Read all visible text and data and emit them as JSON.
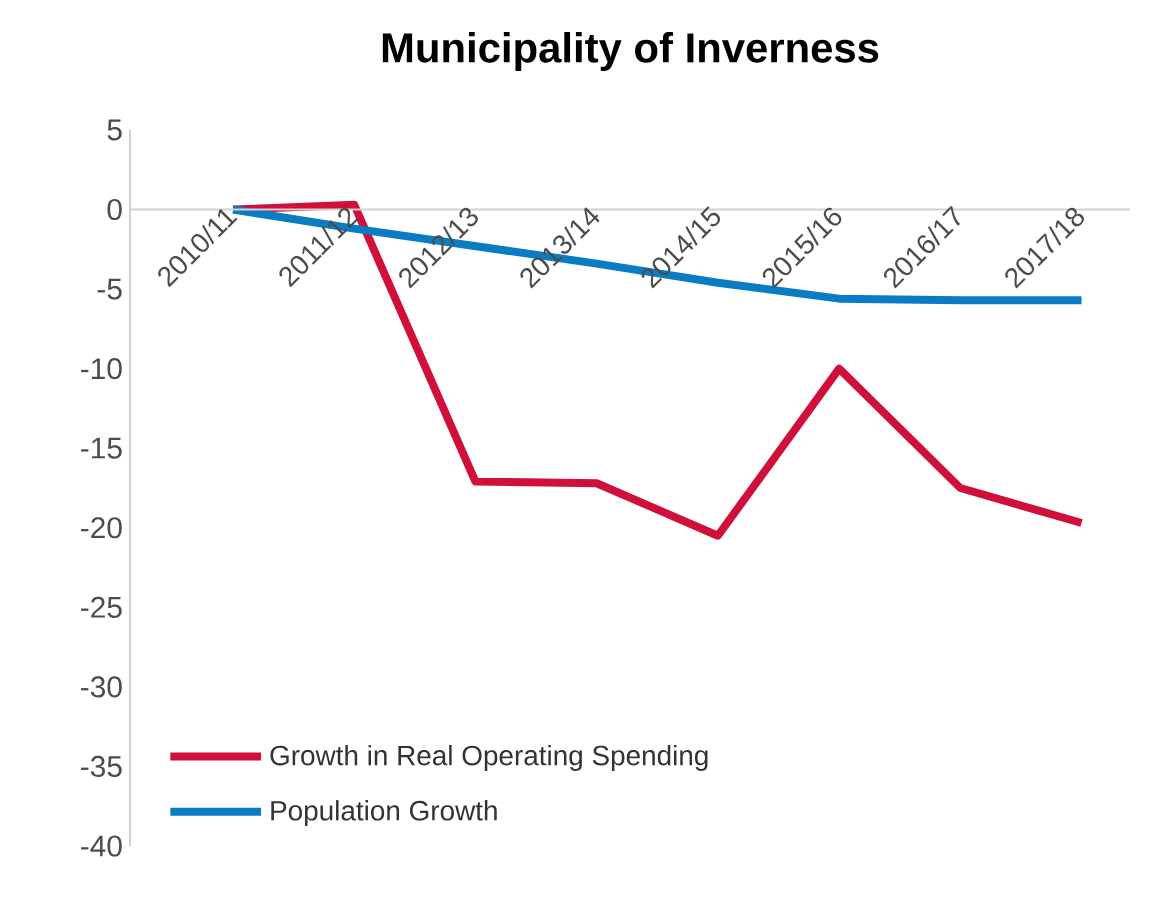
{
  "chart_data": {
    "type": "line",
    "title": "Municipality of Inverness",
    "categories": [
      "2010/11",
      "2011/12",
      "2012/13",
      "2013/14",
      "2014/15",
      "2015/16",
      "2016/17",
      "2017/18"
    ],
    "series": [
      {
        "name": "Growth in Real Operating Spending",
        "color": "#d0103a",
        "values": [
          0,
          0.3,
          -17.1,
          -17.2,
          -20.5,
          -10,
          -17.5,
          -19.7
        ]
      },
      {
        "name": "Population Growth",
        "color": "#0a7cc4",
        "values": [
          0,
          -1.2,
          -2.3,
          -3.4,
          -4.6,
          -5.6,
          -5.7,
          -5.7
        ]
      }
    ],
    "ylim": [
      -40,
      5
    ],
    "yticks": [
      -40,
      -35,
      -30,
      -25,
      -20,
      -15,
      -10,
      -5,
      0,
      5
    ],
    "grid": false,
    "legend": "bottom left",
    "marker": "none",
    "line_style": "solid"
  }
}
